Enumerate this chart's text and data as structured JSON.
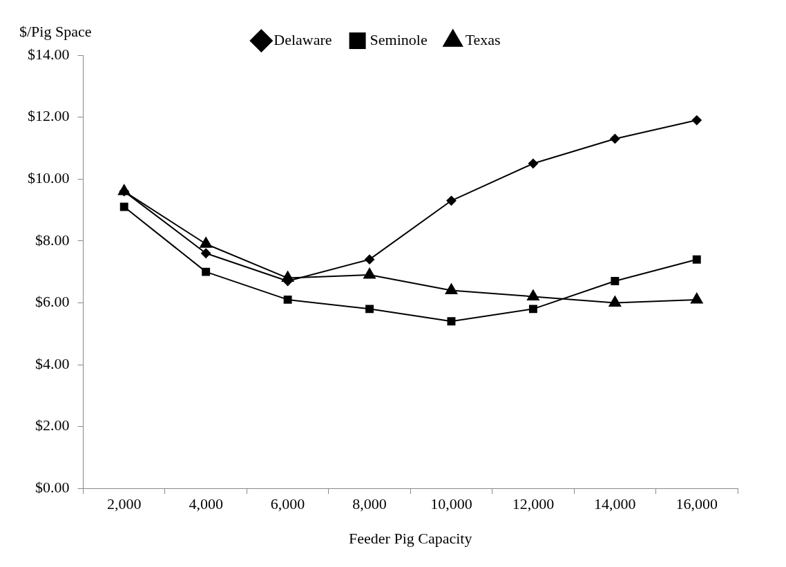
{
  "chart_data": {
    "type": "line",
    "xlabel": "Feeder Pig Capacity",
    "ylabel": "$/Pig Space",
    "categories": [
      "2,000",
      "4,000",
      "6,000",
      "8,000",
      "10,000",
      "12,000",
      "14,000",
      "16,000"
    ],
    "series": [
      {
        "name": "Delaware",
        "color": "#000000",
        "marker": "diamond",
        "values": [
          9.6,
          7.6,
          6.7,
          7.4,
          9.3,
          10.5,
          11.3,
          11.9
        ]
      },
      {
        "name": "Seminole",
        "color": "#000000",
        "marker": "square",
        "values": [
          9.1,
          7.0,
          6.1,
          5.8,
          5.4,
          5.8,
          6.7,
          7.4
        ]
      },
      {
        "name": "Texas",
        "color": "#000000",
        "marker": "triangle",
        "values": [
          9.6,
          7.9,
          6.8,
          6.9,
          6.4,
          6.2,
          6.0,
          6.1
        ]
      }
    ],
    "ylim": [
      0,
      14
    ],
    "yticks": [
      {
        "value": 0,
        "label": "$0.00"
      },
      {
        "value": 2,
        "label": "$2.00"
      },
      {
        "value": 4,
        "label": "$4.00"
      },
      {
        "value": 6,
        "label": "$6.00"
      },
      {
        "value": 8,
        "label": "$8.00"
      },
      {
        "value": 10,
        "label": "$10.00"
      },
      {
        "value": 12,
        "label": "$12.00"
      },
      {
        "value": 14,
        "label": "$14.00"
      }
    ],
    "grid": false,
    "legend": "top",
    "line_style": "solid"
  }
}
